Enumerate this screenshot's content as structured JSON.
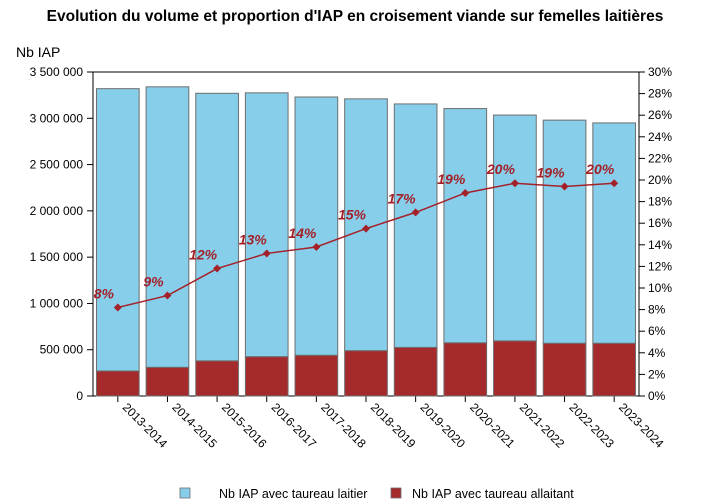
{
  "chart_data": {
    "type": "bar",
    "title": "Evolution du volume et proportion d'IAP en croisement viande sur femelles laitières",
    "ylabel": "Nb IAP",
    "categories": [
      "2013-2014",
      "2014-2015",
      "2015-2016",
      "2016-2017",
      "2017-2018",
      "2018-2019",
      "2019-2020",
      "2020-2021",
      "2021-2022",
      "2022-2023",
      "2023-2024"
    ],
    "stacked": true,
    "series": [
      {
        "name": "Nb IAP avec taureau laitier",
        "color": "#87ceeb",
        "values": [
          3050000,
          3030000,
          2890000,
          2850000,
          2790000,
          2720000,
          2630000,
          2530000,
          2440000,
          2410000,
          2380000
        ]
      },
      {
        "name": "Nb IAP avec taureau allaitant",
        "color": "#a42a2c",
        "values": [
          270000,
          310000,
          380000,
          425000,
          440000,
          490000,
          525000,
          575000,
          595000,
          570000,
          570000
        ]
      }
    ],
    "line": {
      "axis": "right",
      "color": "#a42129",
      "values": [
        8.2,
        9.3,
        11.8,
        13.2,
        13.8,
        15.5,
        17.0,
        18.8,
        19.7,
        19.4,
        19.7
      ],
      "labels": [
        "8%",
        "9%",
        "12%",
        "13%",
        "14%",
        "15%",
        "17%",
        "19%",
        "20%",
        "19%",
        "20%"
      ]
    },
    "ylim": [
      0,
      3500000
    ],
    "y_ticks": [
      "0",
      "500 000",
      "1 000 000",
      "1 500 000",
      "2 000 000",
      "2 500 000",
      "3 000 000",
      "3 500 000"
    ],
    "y2lim": [
      0,
      30
    ],
    "y2_ticks": [
      "0%",
      "2%",
      "4%",
      "6%",
      "8%",
      "10%",
      "12%",
      "14%",
      "16%",
      "18%",
      "20%",
      "22%",
      "24%",
      "26%",
      "28%",
      "30%"
    ],
    "legend_position": "bottom"
  }
}
